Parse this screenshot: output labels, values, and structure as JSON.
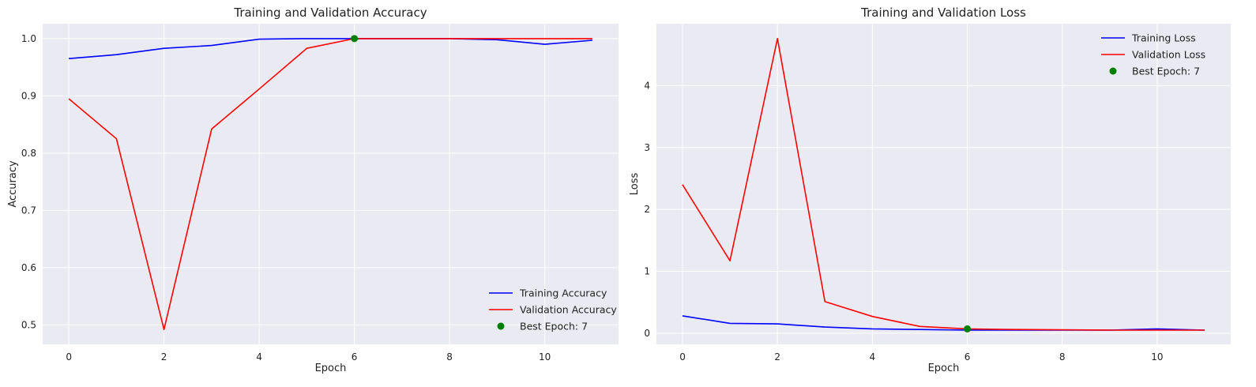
{
  "chart_data": [
    {
      "type": "line",
      "title": "Training and Validation Accuracy",
      "xlabel": "Epoch",
      "ylabel": "Accuracy",
      "xlim": [
        -0.55,
        11.55
      ],
      "ylim": [
        0.466,
        1.026
      ],
      "xticks": [
        0,
        2,
        4,
        6,
        8,
        10
      ],
      "yticks": [
        0.5,
        0.6,
        0.7,
        0.8,
        0.9,
        1.0
      ],
      "ytick_labels": [
        "0.5",
        "0.6",
        "0.7",
        "0.8",
        "0.9",
        "1.0"
      ],
      "grid": true,
      "legend_position": "lower right",
      "x": [
        0,
        1,
        2,
        3,
        4,
        5,
        6,
        7,
        8,
        9,
        10,
        11
      ],
      "series": [
        {
          "name": "Training Accuracy",
          "color": "#0000ff",
          "values": [
            0.965,
            0.972,
            0.983,
            0.988,
            0.999,
            1.0,
            1.0,
            1.0,
            1.0,
            0.998,
            0.99,
            0.997
          ]
        },
        {
          "name": "Validation Accuracy",
          "color": "#ff0000",
          "values": [
            0.895,
            0.825,
            0.492,
            0.842,
            0.912,
            0.983,
            1.0,
            1.0,
            1.0,
            1.0,
            1.0,
            1.0
          ]
        }
      ],
      "marker": {
        "name": "Best Epoch: 7",
        "color": "#008000",
        "x": 6,
        "y": 1.0
      }
    },
    {
      "type": "line",
      "title": "Training and Validation Loss",
      "xlabel": "Epoch",
      "ylabel": "Loss",
      "xlim": [
        -0.55,
        11.55
      ],
      "ylim": [
        -0.18,
        5.0
      ],
      "xticks": [
        0,
        2,
        4,
        6,
        8,
        10
      ],
      "yticks": [
        0,
        1,
        2,
        3,
        4
      ],
      "ytick_labels": [
        "0",
        "1",
        "2",
        "3",
        "4"
      ],
      "grid": true,
      "legend_position": "upper right",
      "x": [
        0,
        1,
        2,
        3,
        4,
        5,
        6,
        7,
        8,
        9,
        10,
        11
      ],
      "series": [
        {
          "name": "Training Loss",
          "color": "#0000ff",
          "values": [
            0.28,
            0.16,
            0.15,
            0.1,
            0.07,
            0.06,
            0.05,
            0.05,
            0.05,
            0.05,
            0.07,
            0.05
          ]
        },
        {
          "name": "Validation Loss",
          "color": "#ff0000",
          "values": [
            2.4,
            1.17,
            4.76,
            0.51,
            0.27,
            0.11,
            0.07,
            0.06,
            0.055,
            0.05,
            0.05,
            0.05
          ]
        }
      ],
      "marker": {
        "name": "Best Epoch: 7",
        "color": "#008000",
        "x": 6,
        "y": 0.07
      }
    }
  ]
}
